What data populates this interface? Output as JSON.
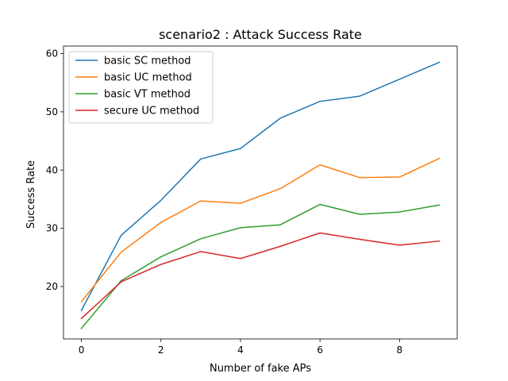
{
  "chart_data": {
    "type": "line",
    "title": "scenario2 : Attack Success Rate",
    "xlabel": "Number of fake APs",
    "ylabel": "Success Rate",
    "xlim": [
      -0.45,
      9.45
    ],
    "ylim": [
      11,
      61.3
    ],
    "xticks": [
      0,
      2,
      4,
      6,
      8
    ],
    "yticks": [
      20,
      30,
      40,
      50,
      60
    ],
    "grid": false,
    "legend_position": "top-left",
    "x": [
      0,
      1,
      2,
      3,
      4,
      5,
      6,
      7,
      8,
      9
    ],
    "series": [
      {
        "name": "basic SC method",
        "color": "#1f77b4",
        "values": [
          15.9,
          28.8,
          34.8,
          41.9,
          43.7,
          48.9,
          51.8,
          52.7,
          55.6,
          58.5
        ]
      },
      {
        "name": "basic UC method",
        "color": "#ff7f0e",
        "values": [
          17.4,
          25.9,
          31.0,
          34.7,
          34.3,
          36.8,
          40.9,
          38.7,
          38.8,
          42.0
        ]
      },
      {
        "name": "basic VT method",
        "color": "#2ca02c",
        "values": [
          12.8,
          21.0,
          25.1,
          28.2,
          30.1,
          30.6,
          34.1,
          32.4,
          32.8,
          34.0
        ]
      },
      {
        "name": "secure UC method",
        "color": "#d62728",
        "values": [
          14.5,
          20.8,
          23.8,
          26.0,
          24.8,
          26.9,
          29.2,
          28.1,
          27.1,
          27.8
        ]
      }
    ]
  }
}
